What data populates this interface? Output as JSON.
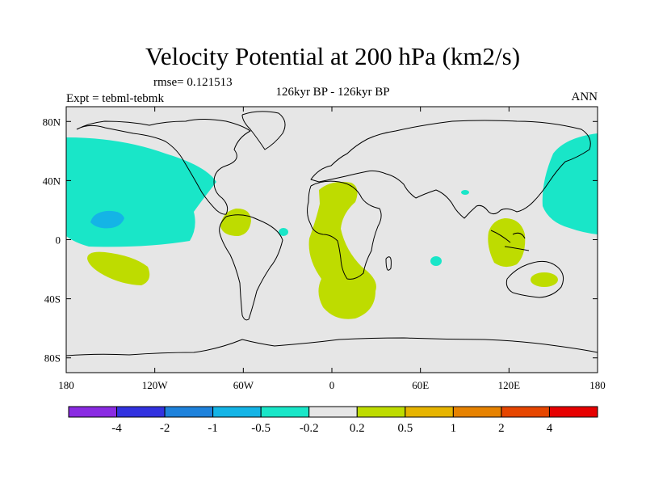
{
  "chart_data": {
    "type": "map",
    "title": "Velocity Potential at 200 hPa (km2/s)",
    "rmse_label": "rmse= 0.121513",
    "left_label": "Expt = tebml-tebmk",
    "center_label": "126kyr BP - 126kyr BP",
    "right_label": "ANN",
    "x_ticks": [
      "180",
      "120W",
      "60W",
      "0",
      "60E",
      "120E",
      "180"
    ],
    "x_values": [
      -180,
      -120,
      -60,
      0,
      60,
      120,
      180
    ],
    "y_ticks": [
      "80N",
      "40N",
      "0",
      "40S",
      "80S"
    ],
    "y_values": [
      80,
      40,
      0,
      -40,
      -80
    ],
    "lon_range": [
      -180,
      180
    ],
    "lat_range": [
      -90,
      90
    ],
    "colorbar": {
      "labels": [
        "-4",
        "-2",
        "-1",
        "-0.5",
        "-0.2",
        "0.2",
        "0.5",
        "1",
        "2",
        "4"
      ],
      "colors": [
        "#8a2be2",
        "#3232e0",
        "#1e82dc",
        "#14b4e6",
        "#19e6c8",
        "#e6e6e6",
        "#bedc00",
        "#e6b400",
        "#e68200",
        "#e64600",
        "#e60000"
      ]
    },
    "colors": {
      "neg": "#19e6c8",
      "neg_strong": "#14b4e6",
      "pos": "#bedc00",
      "land_bg": "#e6e6e6"
    }
  }
}
